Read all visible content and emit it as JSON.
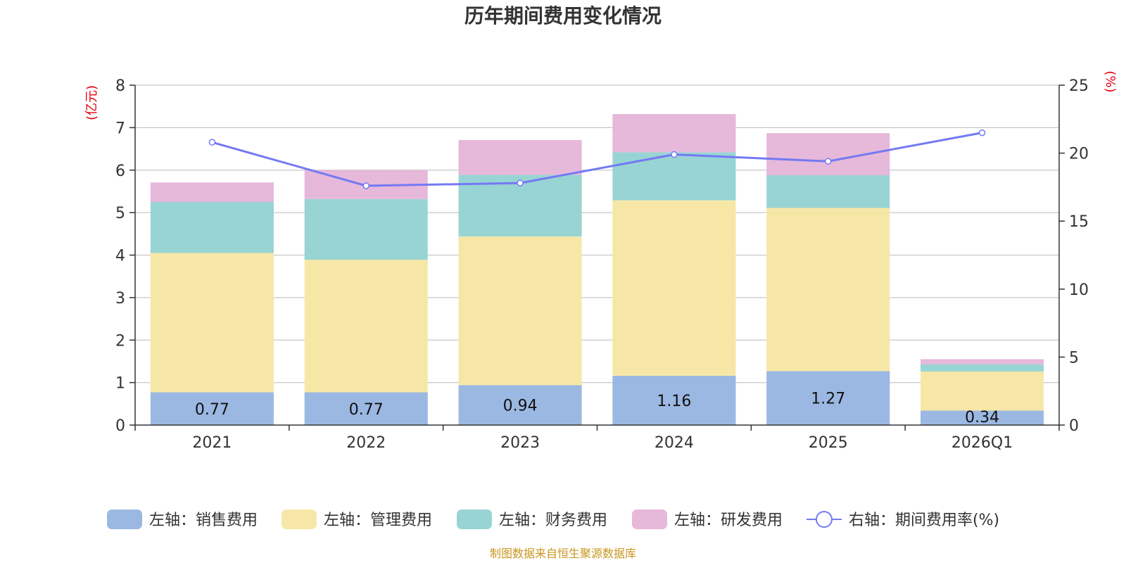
{
  "chart_data": {
    "type": "bar",
    "title": "历年期间费用变化情况",
    "categories": [
      "2021",
      "2022",
      "2023",
      "2024",
      "2025",
      "2026Q1"
    ],
    "left_axis": {
      "unit": "(亿元)",
      "ylim": [
        0,
        8
      ],
      "ticks": [
        "0",
        "1",
        "2",
        "3",
        "4",
        "5",
        "6",
        "7",
        "8"
      ]
    },
    "right_axis": {
      "unit": "(%)",
      "ylim": [
        0,
        25
      ],
      "ticks": [
        "0",
        "5",
        "10",
        "15",
        "20",
        "25"
      ]
    },
    "series": [
      {
        "name": "左轴：销售费用",
        "color": "#9bb8e2",
        "values": [
          0.77,
          0.77,
          0.94,
          1.16,
          1.27,
          0.34
        ],
        "labels": [
          "0.77",
          "0.77",
          "0.94",
          "1.16",
          "1.27",
          "0.34"
        ]
      },
      {
        "name": "左轴：管理费用",
        "color": "#f7e7a7",
        "values": [
          3.28,
          3.12,
          3.5,
          4.13,
          3.84,
          0.92
        ]
      },
      {
        "name": "左轴：财务费用",
        "color": "#98d4d4",
        "values": [
          1.2,
          1.43,
          1.45,
          1.13,
          0.77,
          0.17
        ]
      },
      {
        "name": "左轴：研发费用",
        "color": "#e6b8da",
        "values": [
          0.46,
          0.68,
          0.82,
          0.9,
          0.99,
          0.12
        ]
      }
    ],
    "line": {
      "name": "右轴：期间费用率(%)",
      "color": "#7479f2",
      "values": [
        20.8,
        17.6,
        17.8,
        19.9,
        19.4,
        21.5
      ]
    },
    "grid": true,
    "legend_position": "bottom"
  },
  "source": "制图数据来自恒生聚源数据库"
}
